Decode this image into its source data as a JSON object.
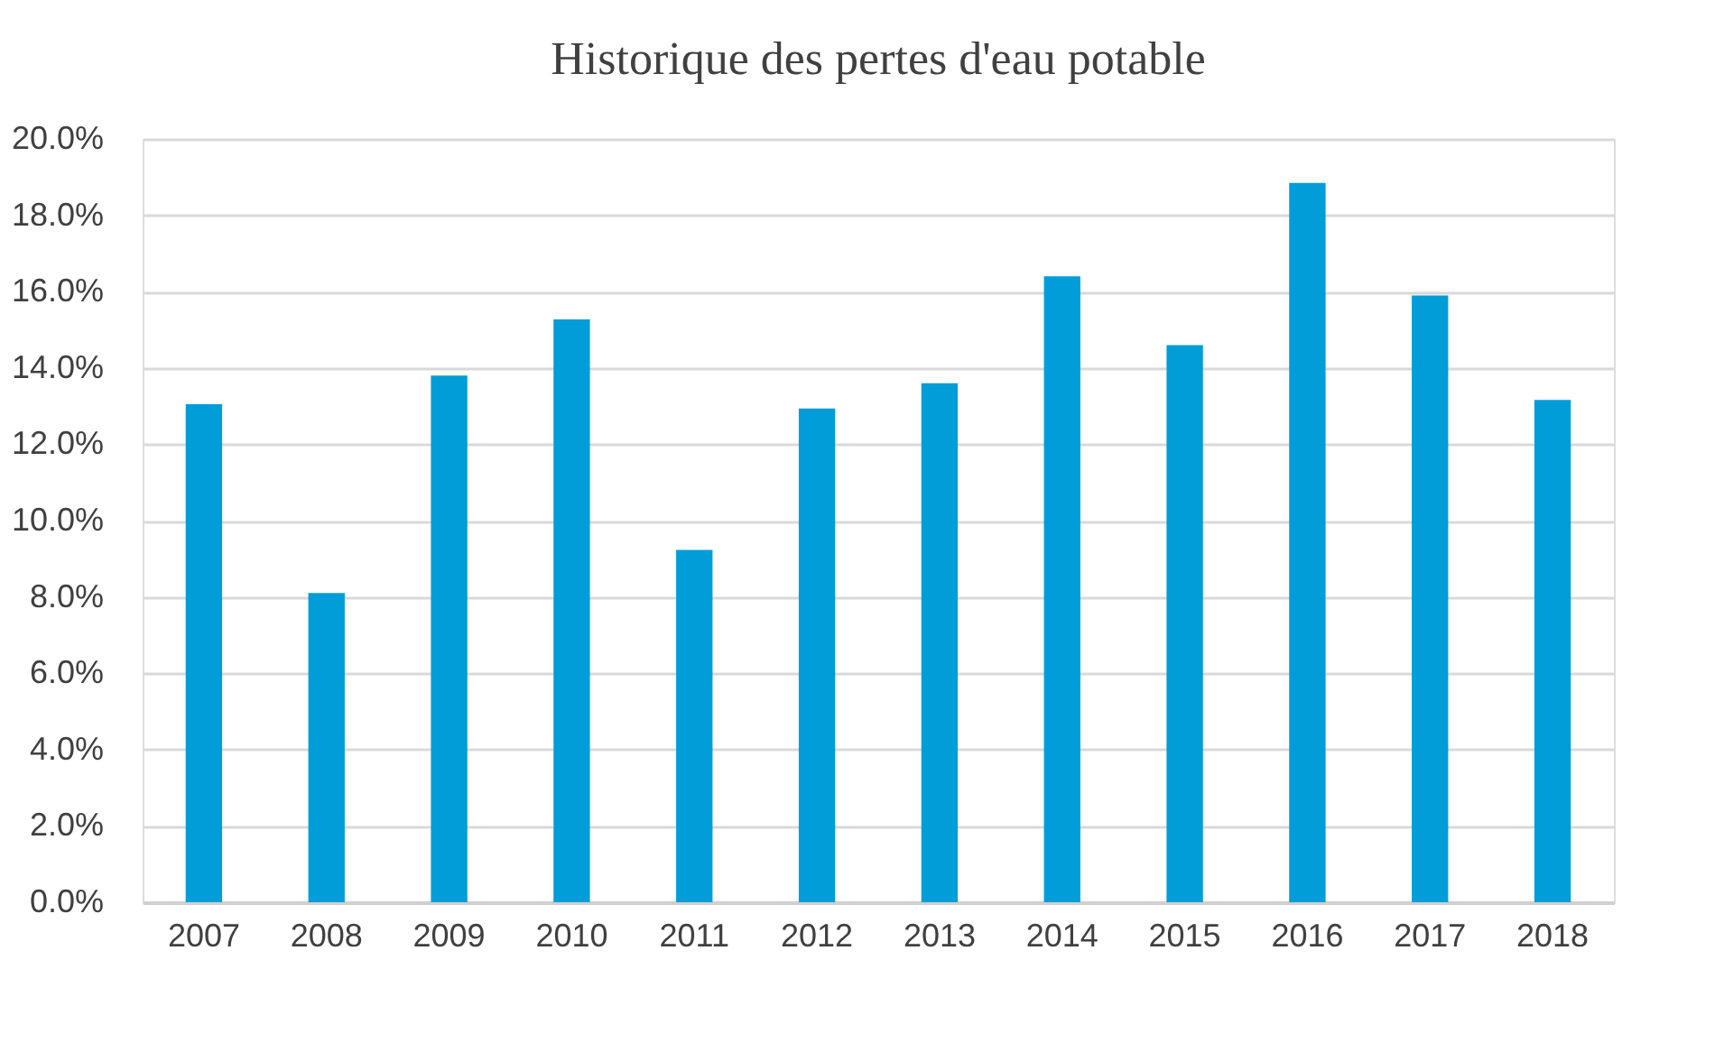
{
  "chart_data": {
    "type": "bar",
    "title": "Historique des pertes d'eau potable",
    "categories": [
      "2007",
      "2008",
      "2009",
      "2010",
      "2011",
      "2012",
      "2013",
      "2014",
      "2015",
      "2016",
      "2017",
      "2018"
    ],
    "values": [
      13.05,
      8.1,
      13.8,
      15.27,
      9.23,
      12.94,
      13.6,
      16.4,
      14.6,
      18.85,
      15.9,
      13.16
    ],
    "color": "#009dd9",
    "ylim": [
      0,
      20
    ],
    "yticks": [
      {
        "value": 0,
        "label": "0.0%"
      },
      {
        "value": 2,
        "label": "2.0%"
      },
      {
        "value": 4,
        "label": "4.0%"
      },
      {
        "value": 6,
        "label": "6.0%"
      },
      {
        "value": 8,
        "label": "8.0%"
      },
      {
        "value": 10,
        "label": "10.0%"
      },
      {
        "value": 12,
        "label": "12.0%"
      },
      {
        "value": 14,
        "label": "14.0%"
      },
      {
        "value": 16,
        "label": "16.0%"
      },
      {
        "value": 18,
        "label": "18.0%"
      },
      {
        "value": 20,
        "label": "20.0%"
      }
    ],
    "grid": "y"
  }
}
